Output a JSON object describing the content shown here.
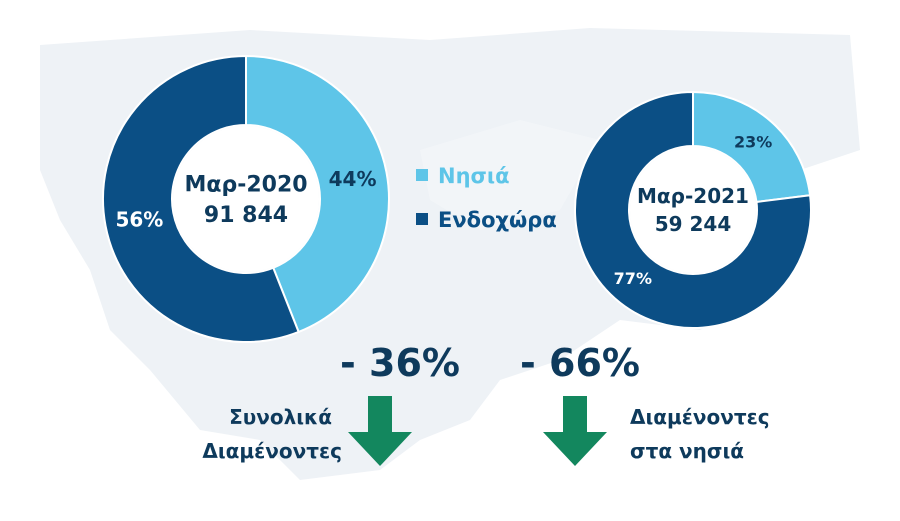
{
  "colors": {
    "dark": "#0b4f85",
    "light": "#5ec5e8",
    "text_dark": "#0e3a5c",
    "arrow": "#13875e",
    "map": "#eef2f6"
  },
  "legend": [
    {
      "label": "Νησιά",
      "color": "#5ec5e8"
    },
    {
      "label": "Ενδοχώρα",
      "color": "#0b4f85"
    }
  ],
  "chart_data": [
    {
      "type": "pie",
      "center_lines": [
        "Μαρ-2020",
        "91 844"
      ],
      "slices": [
        {
          "name": "Νησιά",
          "value": 44,
          "label": "44%"
        },
        {
          "name": "Ενδοχώρα",
          "value": 56,
          "label": "56%"
        }
      ]
    },
    {
      "type": "pie",
      "center_lines": [
        "Μαρ-2021",
        "59 244"
      ],
      "slices": [
        {
          "name": "Νησιά",
          "value": 23,
          "label": "23%"
        },
        {
          "name": "Ενδοχώρα",
          "value": 77,
          "label": "77%"
        }
      ]
    }
  ],
  "changes": [
    {
      "value": "- 36%",
      "caption": [
        "Συνολικά",
        "Διαμένοντες"
      ]
    },
    {
      "value": "- 66%",
      "caption": [
        "Διαμένοντες",
        "στα νησιά"
      ]
    }
  ]
}
